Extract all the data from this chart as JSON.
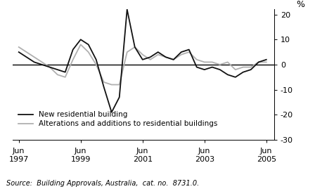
{
  "title": "",
  "ylabel": "%",
  "source_text": "Source:  Building Approvals, Australia,  cat. no.  8731.0.",
  "ylim": [
    -30,
    22
  ],
  "yticks": [
    -30,
    -20,
    -10,
    0,
    10,
    20
  ],
  "background_color": "#ffffff",
  "new_residential": {
    "label": "New residential building",
    "color": "#111111",
    "x": [
      1997.5,
      1997.75,
      1998.0,
      1998.25,
      1998.5,
      1998.75,
      1999.0,
      1999.25,
      1999.5,
      1999.75,
      2000.0,
      2000.25,
      2000.5,
      2000.75,
      2001.0,
      2001.25,
      2001.5,
      2001.75,
      2002.0,
      2002.25,
      2002.5,
      2002.75,
      2003.0,
      2003.25,
      2003.5,
      2003.75,
      2004.0,
      2004.25,
      2004.5,
      2004.75,
      2005.0,
      2005.25,
      2005.5
    ],
    "y": [
      5,
      3,
      1,
      0,
      -1,
      -2,
      -3,
      6,
      10,
      8,
      2,
      -9,
      -19,
      -13,
      22,
      7,
      2,
      3,
      5,
      3,
      2,
      5,
      6,
      -1,
      -2,
      -1,
      -2,
      -4,
      -5,
      -3,
      -2,
      1,
      2
    ]
  },
  "alterations": {
    "label": "Alterations and additions to residential buildings",
    "color": "#b0b0b0",
    "x": [
      1997.5,
      1997.75,
      1998.0,
      1998.25,
      1998.5,
      1998.75,
      1999.0,
      1999.25,
      1999.5,
      1999.75,
      2000.0,
      2000.25,
      2000.5,
      2000.75,
      2001.0,
      2001.25,
      2001.5,
      2001.75,
      2002.0,
      2002.25,
      2002.5,
      2002.75,
      2003.0,
      2003.25,
      2003.5,
      2003.75,
      2004.0,
      2004.25,
      2004.5,
      2004.75,
      2005.0,
      2005.25,
      2005.5
    ],
    "y": [
      7,
      5,
      3,
      1,
      -1,
      -4,
      -5,
      2,
      8,
      5,
      0,
      -7,
      -8,
      -8,
      5,
      7,
      4,
      2,
      4,
      3,
      2,
      4,
      5,
      2,
      1,
      1,
      0,
      1,
      -2,
      -1,
      -1,
      1,
      1
    ]
  },
  "xtick_positions": [
    1997.5,
    1999.5,
    2001.5,
    2003.5,
    2005.5
  ],
  "xtick_labels_line1": [
    "Jun",
    "Jun",
    "Jun",
    "Jun",
    "Jun"
  ],
  "xtick_labels_line2": [
    "1997",
    "1999",
    "2001",
    "2003",
    "2005"
  ],
  "xlim": [
    1997.3,
    2005.75
  ]
}
